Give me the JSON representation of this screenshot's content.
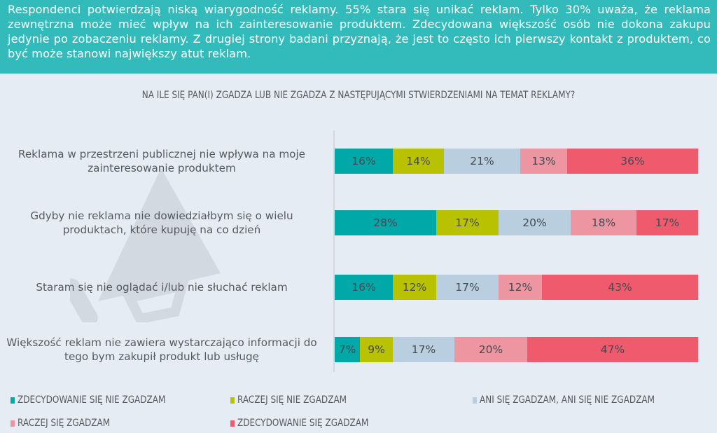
{
  "header": {
    "text": "Respondenci potwierdzają niską wiarygodność reklamy. 55% stara się unikać reklam. Tylko 30% uważa, że reklama zewnętrzna może mieć wpływ na ich zainteresowanie produktem. Zdecydowana większość osób nie dokona zakupu jedynie po zobaczeniu reklamy. Z drugiej strony badani przyznają, że jest to często ich pierwszy kontakt z produktem, co być może stanowi największy atut reklam."
  },
  "colors": {
    "header_bg": "#33bbbb",
    "page_bg": "#e6ecf3",
    "series": [
      "#00a8a8",
      "#b8c200",
      "#b9cfdf",
      "#ee95a2",
      "#ef5a6d"
    ]
  },
  "chart_data": {
    "type": "bar",
    "orientation": "horizontal",
    "stacked": true,
    "title": "NA ILE SIĘ PAN(I) ZGADZA LUB NIE ZGADZA Z NASTĘPUJĄCYMI STWIERDZENIAMI NA TEMAT REKLAMY?",
    "xlabel": "",
    "ylabel": "",
    "xlim": [
      0,
      100
    ],
    "grid": false,
    "legend_position": "bottom",
    "categories": [
      "Reklama w przestrzeni publicznej nie wpływa na moje zainteresowanie produktem",
      "Gdyby nie reklama nie dowiedziałbym się o wielu produktach, które kupuję na co dzień",
      "Staram się nie oglądać i/lub nie słuchać reklam",
      "Większość reklam nie zawiera wystarczająco informacji do tego bym zakupił produkt lub usługę"
    ],
    "series": [
      {
        "name": "ZDECYDOWANIE SIĘ NIE ZGADZAM",
        "values": [
          16,
          28,
          16,
          7
        ]
      },
      {
        "name": "RACZEJ SIĘ NIE ZGADZAM",
        "values": [
          14,
          17,
          12,
          9
        ]
      },
      {
        "name": "ANI SIĘ ZGADZAM, ANI SIĘ NIE ZGADZAM",
        "values": [
          21,
          20,
          17,
          17
        ]
      },
      {
        "name": "RACZEJ SIĘ ZGADZAM",
        "values": [
          13,
          18,
          12,
          20
        ]
      },
      {
        "name": "ZDECYDOWANIE SIĘ ZGADZAM",
        "values": [
          36,
          17,
          43,
          47
        ]
      }
    ],
    "data_labels": [
      [
        "16%",
        "14%",
        "21%",
        "13%",
        "36%"
      ],
      [
        "28%",
        "17%",
        "20%",
        "18%",
        "17%"
      ],
      [
        "16%",
        "12%",
        "17%",
        "12%",
        "43%"
      ],
      [
        "7%",
        "9%",
        "17%",
        "20%",
        "47%"
      ]
    ]
  },
  "icons": {
    "background": "megaphone-icon"
  }
}
